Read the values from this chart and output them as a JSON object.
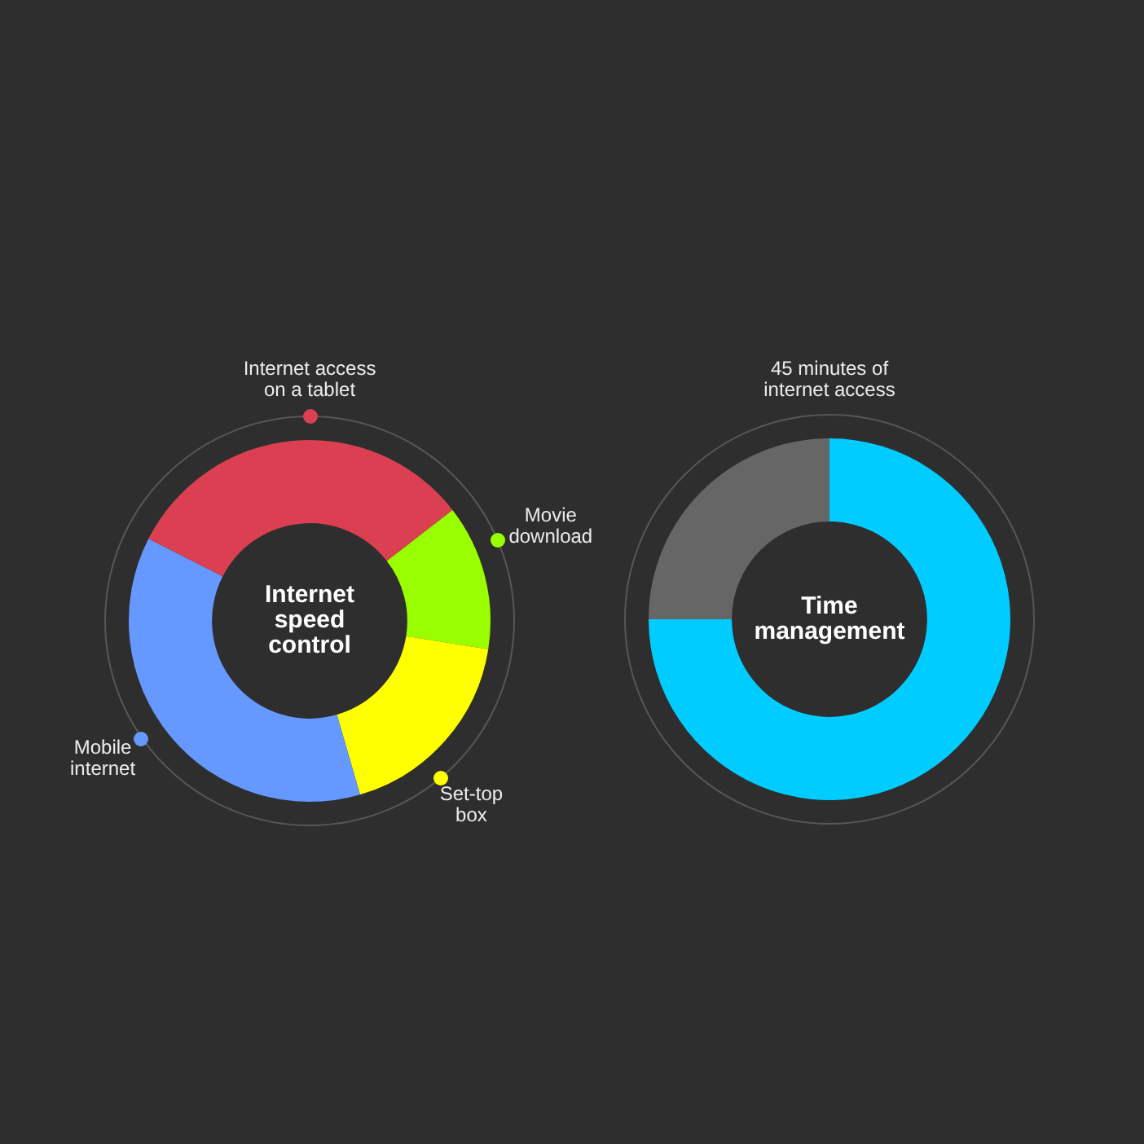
{
  "chart_data": [
    {
      "type": "donut",
      "title": "Internet speed control",
      "categories": [
        "Internet access on a tablet",
        "Movie download",
        "Set-top box",
        "Mobile internet"
      ],
      "values": [
        32,
        13,
        18,
        37
      ],
      "colors": [
        "#db4052",
        "#99ff00",
        "#ffff00",
        "#6699ff"
      ]
    },
    {
      "type": "donut",
      "title": "Time management",
      "annotations": [
        "45 minutes of internet access"
      ],
      "categories": [
        null,
        null
      ],
      "values": [
        75,
        25
      ],
      "colors": [
        "#00ccff",
        "#666666"
      ]
    }
  ]
}
